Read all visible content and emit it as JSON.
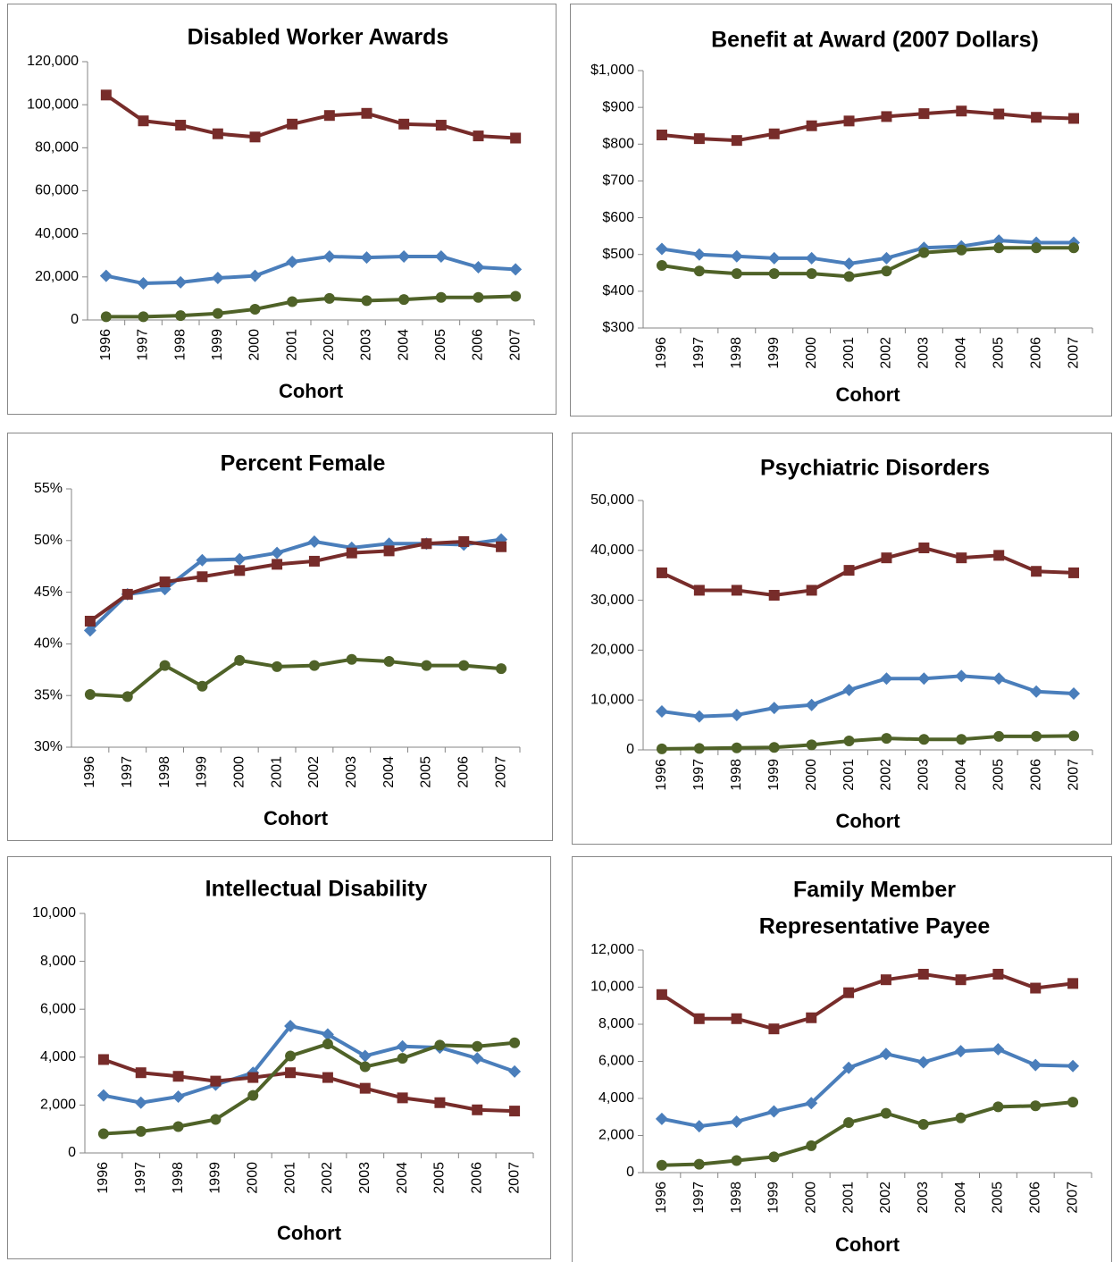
{
  "chart_data": [
    {
      "type": "line",
      "title": "Disabled Worker Awards",
      "x_label": "Cohort",
      "categories": [
        "1996",
        "1997",
        "1998",
        "1999",
        "2000",
        "2001",
        "2002",
        "2003",
        "2004",
        "2005",
        "2006",
        "2007"
      ],
      "ylim": [
        0,
        120000
      ],
      "yticks": [
        0,
        {
          "value": 20000,
          "label": "20,000"
        },
        {
          "value": 40000,
          "label": "40,000"
        },
        {
          "value": 60000,
          "label": "60,000"
        },
        {
          "value": 80000,
          "label": "80,000"
        },
        {
          "value": 100000,
          "label": "100,000"
        },
        {
          "value": 120000,
          "label": "120,000"
        }
      ],
      "series": [
        {
          "color": "#4a7ebb",
          "marker": "diamond",
          "values": [
            20500,
            17000,
            17500,
            19500,
            20500,
            27000,
            29500,
            29000,
            29500,
            29500,
            24500,
            23500
          ]
        },
        {
          "color": "#772c2a",
          "marker": "square",
          "values": [
            104500,
            92500,
            90500,
            86500,
            85000,
            91000,
            95000,
            96000,
            91000,
            90500,
            85500,
            84500
          ]
        },
        {
          "color": "#4f6228",
          "marker": "circle",
          "values": [
            1500,
            1500,
            2000,
            3000,
            5000,
            8500,
            10000,
            9000,
            9500,
            10500,
            10500,
            11000
          ]
        }
      ]
    },
    {
      "type": "line",
      "title": "Benefit at Award (2007 Dollars)",
      "x_label": "Cohort",
      "categories": [
        "1996",
        "1997",
        "1998",
        "1999",
        "2000",
        "2001",
        "2002",
        "2003",
        "2004",
        "2005",
        "2006",
        "2007"
      ],
      "ylim": [
        300,
        1000
      ],
      "yticks": [
        {
          "value": 300,
          "label": "$300"
        },
        {
          "value": 400,
          "label": "$400"
        },
        {
          "value": 500,
          "label": "$500"
        },
        {
          "value": 600,
          "label": "$600"
        },
        {
          "value": 700,
          "label": "$700"
        },
        {
          "value": 800,
          "label": "$800"
        },
        {
          "value": 900,
          "label": "$900"
        },
        {
          "value": 1000,
          "label": "$1,000"
        }
      ],
      "series": [
        {
          "color": "#4a7ebb",
          "marker": "diamond",
          "values": [
            515,
            500,
            495,
            490,
            490,
            475,
            490,
            518,
            522,
            538,
            532,
            532
          ]
        },
        {
          "color": "#772c2a",
          "marker": "square",
          "values": [
            825,
            815,
            810,
            828,
            850,
            863,
            875,
            883,
            890,
            882,
            873,
            870
          ]
        },
        {
          "color": "#4f6228",
          "marker": "circle",
          "values": [
            470,
            455,
            448,
            448,
            448,
            440,
            455,
            505,
            512,
            518,
            518,
            518
          ]
        }
      ]
    },
    {
      "type": "line",
      "title": "Percent Female",
      "x_label": "Cohort",
      "categories": [
        "1996",
        "1997",
        "1998",
        "1999",
        "2000",
        "2001",
        "2002",
        "2003",
        "2004",
        "2005",
        "2006",
        "2007"
      ],
      "ylim": [
        30,
        55
      ],
      "yticks": [
        {
          "value": 30,
          "label": "30%"
        },
        {
          "value": 35,
          "label": "35%"
        },
        {
          "value": 40,
          "label": "40%"
        },
        {
          "value": 45,
          "label": "45%"
        },
        {
          "value": 50,
          "label": "50%"
        },
        {
          "value": 55,
          "label": "55%"
        }
      ],
      "series": [
        {
          "color": "#4a7ebb",
          "marker": "diamond",
          "values": [
            41.3,
            44.8,
            45.3,
            48.1,
            48.2,
            48.8,
            49.9,
            49.3,
            49.7,
            49.7,
            49.6,
            50.1
          ]
        },
        {
          "color": "#772c2a",
          "marker": "square",
          "values": [
            42.2,
            44.8,
            46.0,
            46.5,
            47.1,
            47.7,
            48.0,
            48.8,
            49.0,
            49.7,
            49.9,
            49.4
          ]
        },
        {
          "color": "#4f6228",
          "marker": "circle",
          "values": [
            35.1,
            34.9,
            37.9,
            35.9,
            38.4,
            37.8,
            37.9,
            38.5,
            38.3,
            37.9,
            37.9,
            37.6
          ]
        }
      ]
    },
    {
      "type": "line",
      "title": "Psychiatric Disorders",
      "x_label": "Cohort",
      "categories": [
        "1996",
        "1997",
        "1998",
        "1999",
        "2000",
        "2001",
        "2002",
        "2003",
        "2004",
        "2005",
        "2006",
        "2007"
      ],
      "ylim": [
        0,
        50000
      ],
      "yticks": [
        0,
        {
          "value": 10000,
          "label": "10,000"
        },
        {
          "value": 20000,
          "label": "20,000"
        },
        {
          "value": 30000,
          "label": "30,000"
        },
        {
          "value": 40000,
          "label": "40,000"
        },
        {
          "value": 50000,
          "label": "50,000"
        }
      ],
      "series": [
        {
          "color": "#4a7ebb",
          "marker": "diamond",
          "values": [
            7700,
            6700,
            7000,
            8400,
            9000,
            12000,
            14300,
            14300,
            14800,
            14300,
            11700,
            11300
          ]
        },
        {
          "color": "#772c2a",
          "marker": "square",
          "values": [
            35500,
            32000,
            32000,
            31000,
            32000,
            36000,
            38500,
            40500,
            38500,
            39000,
            35800,
            35500
          ]
        },
        {
          "color": "#4f6228",
          "marker": "circle",
          "values": [
            200,
            300,
            400,
            500,
            1000,
            1800,
            2300,
            2100,
            2100,
            2700,
            2700,
            2800
          ]
        }
      ]
    },
    {
      "type": "line",
      "title": "Intellectual Disability",
      "x_label": "Cohort",
      "categories": [
        "1996",
        "1997",
        "1998",
        "1999",
        "2000",
        "2001",
        "2002",
        "2003",
        "2004",
        "2005",
        "2006",
        "2007"
      ],
      "ylim": [
        0,
        10000
      ],
      "yticks": [
        0,
        {
          "value": 2000,
          "label": "2,000"
        },
        {
          "value": 4000,
          "label": "4,000"
        },
        {
          "value": 6000,
          "label": "6,000"
        },
        {
          "value": 8000,
          "label": "8,000"
        },
        {
          "value": 10000,
          "label": "10,000"
        }
      ],
      "series": [
        {
          "color": "#4a7ebb",
          "marker": "diamond",
          "values": [
            2400,
            2100,
            2350,
            2850,
            3350,
            5300,
            4950,
            4050,
            4450,
            4400,
            3950,
            3400
          ]
        },
        {
          "color": "#772c2a",
          "marker": "square",
          "values": [
            3900,
            3350,
            3200,
            3000,
            3150,
            3350,
            3150,
            2700,
            2300,
            2100,
            1800,
            1750
          ]
        },
        {
          "color": "#4f6228",
          "marker": "circle",
          "values": [
            800,
            900,
            1100,
            1400,
            2400,
            4050,
            4550,
            3600,
            3950,
            4500,
            4450,
            4600
          ]
        }
      ]
    },
    {
      "type": "line",
      "title": [
        "Family Member",
        "Representative Payee"
      ],
      "x_label": "Cohort",
      "categories": [
        "1996",
        "1997",
        "1998",
        "1999",
        "2000",
        "2001",
        "2002",
        "2003",
        "2004",
        "2005",
        "2006",
        "2007"
      ],
      "ylim": [
        0,
        12000
      ],
      "yticks": [
        0,
        {
          "value": 2000,
          "label": "2,000"
        },
        {
          "value": 4000,
          "label": "4,000"
        },
        {
          "value": 6000,
          "label": "6,000"
        },
        {
          "value": 8000,
          "label": "8,000"
        },
        {
          "value": 10000,
          "label": "10,000"
        },
        {
          "value": 12000,
          "label": "12,000"
        }
      ],
      "series": [
        {
          "color": "#4a7ebb",
          "marker": "diamond",
          "values": [
            2900,
            2500,
            2750,
            3300,
            3750,
            5650,
            6400,
            5950,
            6550,
            6650,
            5800,
            5750
          ]
        },
        {
          "color": "#772c2a",
          "marker": "square",
          "values": [
            9600,
            8300,
            8300,
            7750,
            8350,
            9700,
            10400,
            10700,
            10400,
            10700,
            9950,
            10200
          ]
        },
        {
          "color": "#4f6228",
          "marker": "circle",
          "values": [
            400,
            450,
            650,
            850,
            1450,
            2700,
            3200,
            2600,
            2950,
            3550,
            3600,
            3800
          ]
        }
      ]
    }
  ]
}
